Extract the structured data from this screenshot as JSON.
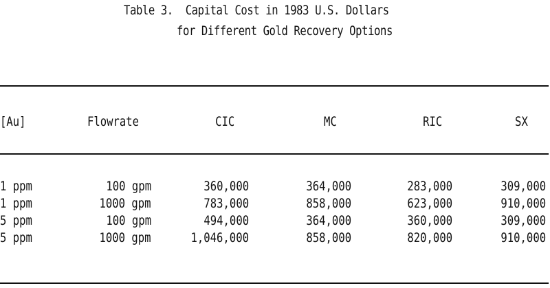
{
  "title": {
    "line1": "Table 3.  Capital Cost in 1983 U.S. Dollars",
    "line2": "for Different Gold Recovery Options"
  },
  "table": {
    "headers": [
      "[Au]",
      "Flowrate",
      "CIC",
      "MC",
      "RIC",
      "SX"
    ],
    "rows": [
      [
        "1 ppm",
        "100 gpm",
        "360,000",
        "364,000",
        "283,000",
        "309,000"
      ],
      [
        "1 ppm",
        "1000 gpm",
        "783,000",
        "858,000",
        "623,000",
        "910,000"
      ],
      [
        "5 ppm",
        "100 gpm",
        "494,000",
        "364,000",
        "360,000",
        "309,000"
      ],
      [
        "5 ppm",
        "1000 gpm",
        "1,046,000",
        "858,000",
        "820,000",
        "910,000"
      ]
    ]
  }
}
